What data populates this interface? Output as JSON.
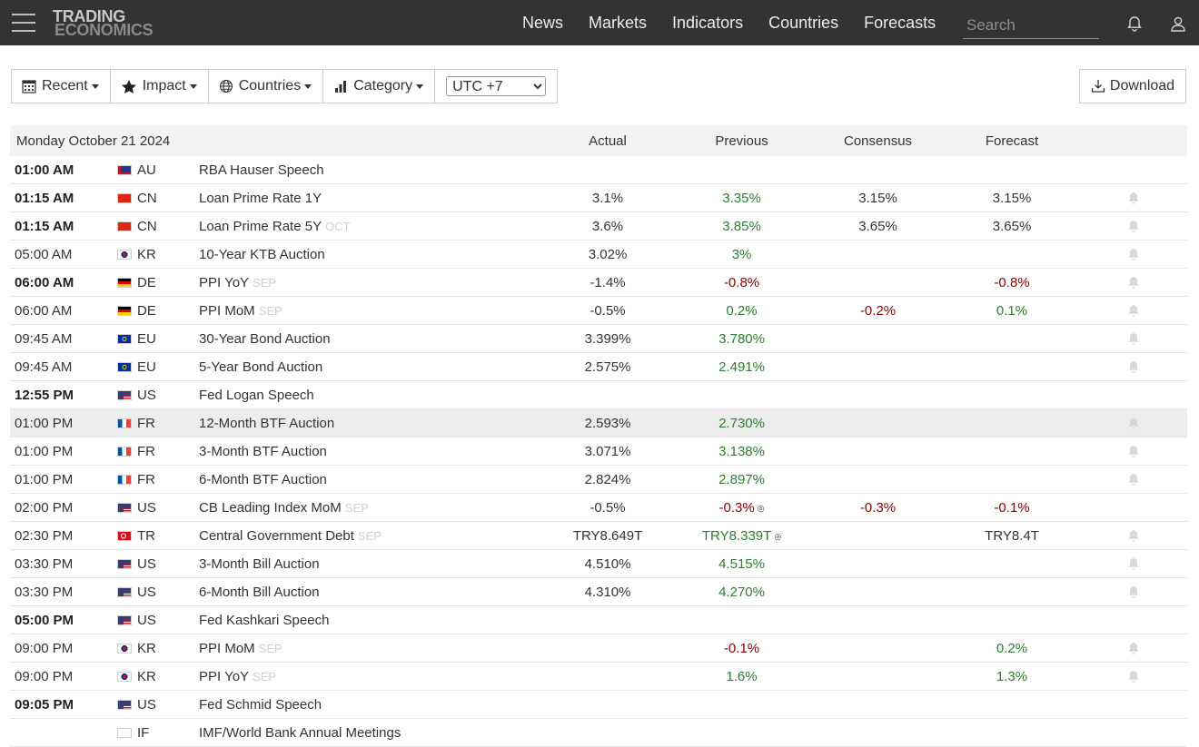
{
  "brand": {
    "line1": "TRADING",
    "line2": "ECONOMICS"
  },
  "nav": {
    "links": [
      "News",
      "Markets",
      "Indicators",
      "Countries",
      "Forecasts"
    ],
    "search_placeholder": "Search"
  },
  "toolbar": {
    "recent": "Recent",
    "impact": "Impact",
    "countries": "Countries",
    "category": "Category",
    "timezone": "UTC +7",
    "download": "Download"
  },
  "table": {
    "date": "Monday October 21 2024",
    "headers": {
      "actual": "Actual",
      "previous": "Previous",
      "consensus": "Consensus",
      "forecast": "Forecast"
    },
    "rows": [
      {
        "time": "01:00 AM",
        "bold": true,
        "country": "AU",
        "event": "RBA Hauser Speech",
        "ref": "",
        "actual": "",
        "previous": "",
        "prev_color": "",
        "prev_revised": false,
        "consensus": "",
        "consensus_color": "",
        "forecast": "",
        "forecast_color": "",
        "bell": false,
        "highlight": false
      },
      {
        "time": "01:15 AM",
        "bold": true,
        "country": "CN",
        "event": "Loan Prime Rate 1Y",
        "ref": "",
        "actual": "3.1%",
        "previous": "3.35%",
        "prev_color": "pos",
        "prev_revised": false,
        "consensus": "3.15%",
        "consensus_color": "dark",
        "forecast": "3.15%",
        "forecast_color": "dark",
        "bell": true,
        "highlight": false
      },
      {
        "time": "01:15 AM",
        "bold": true,
        "country": "CN",
        "event": "Loan Prime Rate 5Y",
        "ref": "OCT",
        "actual": "3.6%",
        "previous": "3.85%",
        "prev_color": "pos",
        "prev_revised": false,
        "consensus": "3.65%",
        "consensus_color": "dark",
        "forecast": "3.65%",
        "forecast_color": "dark",
        "bell": true,
        "highlight": false
      },
      {
        "time": "05:00 AM",
        "bold": false,
        "country": "KR",
        "event": "10-Year KTB Auction",
        "ref": "",
        "actual": "3.02%",
        "previous": "3%",
        "prev_color": "pos",
        "prev_revised": false,
        "consensus": "",
        "consensus_color": "",
        "forecast": "",
        "forecast_color": "",
        "bell": true,
        "highlight": false
      },
      {
        "time": "06:00 AM",
        "bold": true,
        "country": "DE",
        "event": "PPI YoY",
        "ref": "SEP",
        "actual": "-1.4%",
        "previous": "-0.8%",
        "prev_color": "neg",
        "prev_revised": false,
        "consensus": "",
        "consensus_color": "",
        "forecast": "-0.8%",
        "forecast_color": "neg",
        "bell": true,
        "highlight": false
      },
      {
        "time": "06:00 AM",
        "bold": false,
        "country": "DE",
        "event": "PPI MoM",
        "ref": "SEP",
        "actual": "-0.5%",
        "previous": "0.2%",
        "prev_color": "pos",
        "prev_revised": false,
        "consensus": "-0.2%",
        "consensus_color": "neg",
        "forecast": "0.1%",
        "forecast_color": "pos",
        "bell": true,
        "highlight": false
      },
      {
        "time": "09:45 AM",
        "bold": false,
        "country": "EU",
        "event": "30-Year Bond Auction",
        "ref": "",
        "actual": "3.399%",
        "previous": "3.780%",
        "prev_color": "pos",
        "prev_revised": false,
        "consensus": "",
        "consensus_color": "",
        "forecast": "",
        "forecast_color": "",
        "bell": true,
        "highlight": false
      },
      {
        "time": "09:45 AM",
        "bold": false,
        "country": "EU",
        "event": "5-Year Bond Auction",
        "ref": "",
        "actual": "2.575%",
        "previous": "2.491%",
        "prev_color": "pos",
        "prev_revised": false,
        "consensus": "",
        "consensus_color": "",
        "forecast": "",
        "forecast_color": "",
        "bell": true,
        "highlight": false
      },
      {
        "time": "12:55 PM",
        "bold": true,
        "country": "US",
        "event": "Fed Logan Speech",
        "ref": "",
        "actual": "",
        "previous": "",
        "prev_color": "",
        "prev_revised": false,
        "consensus": "",
        "consensus_color": "",
        "forecast": "",
        "forecast_color": "",
        "bell": false,
        "highlight": false
      },
      {
        "time": "01:00 PM",
        "bold": false,
        "country": "FR",
        "event": "12-Month BTF Auction",
        "ref": "",
        "actual": "2.593%",
        "previous": "2.730%",
        "prev_color": "pos",
        "prev_revised": false,
        "consensus": "",
        "consensus_color": "",
        "forecast": "",
        "forecast_color": "",
        "bell": true,
        "highlight": true
      },
      {
        "time": "01:00 PM",
        "bold": false,
        "country": "FR",
        "event": "3-Month BTF Auction",
        "ref": "",
        "actual": "3.071%",
        "previous": "3.138%",
        "prev_color": "pos",
        "prev_revised": false,
        "consensus": "",
        "consensus_color": "",
        "forecast": "",
        "forecast_color": "",
        "bell": true,
        "highlight": false
      },
      {
        "time": "01:00 PM",
        "bold": false,
        "country": "FR",
        "event": "6-Month BTF Auction",
        "ref": "",
        "actual": "2.824%",
        "previous": "2.897%",
        "prev_color": "pos",
        "prev_revised": false,
        "consensus": "",
        "consensus_color": "",
        "forecast": "",
        "forecast_color": "",
        "bell": true,
        "highlight": false
      },
      {
        "time": "02:00 PM",
        "bold": false,
        "country": "US",
        "event": "CB Leading Index MoM",
        "ref": "SEP",
        "actual": "-0.5%",
        "previous": "-0.3%",
        "prev_color": "neg",
        "prev_revised": true,
        "consensus": "-0.3%",
        "consensus_color": "neg",
        "forecast": "-0.1%",
        "forecast_color": "neg",
        "bell": false,
        "highlight": false
      },
      {
        "time": "02:30 PM",
        "bold": false,
        "country": "TR",
        "event": "Central Government Debt",
        "ref": "SEP",
        "actual": "TRY8.649T",
        "previous": "TRY8.339T",
        "prev_color": "pos",
        "prev_revised": true,
        "consensus": "",
        "consensus_color": "",
        "forecast": "TRY8.4T",
        "forecast_color": "dark",
        "bell": true,
        "highlight": false
      },
      {
        "time": "03:30 PM",
        "bold": false,
        "country": "US",
        "event": "3-Month Bill Auction",
        "ref": "",
        "actual": "4.510%",
        "previous": "4.515%",
        "prev_color": "pos",
        "prev_revised": false,
        "consensus": "",
        "consensus_color": "",
        "forecast": "",
        "forecast_color": "",
        "bell": true,
        "highlight": false
      },
      {
        "time": "03:30 PM",
        "bold": false,
        "country": "US",
        "event": "6-Month Bill Auction",
        "ref": "",
        "actual": "4.310%",
        "previous": "4.270%",
        "prev_color": "pos",
        "prev_revised": false,
        "consensus": "",
        "consensus_color": "",
        "forecast": "",
        "forecast_color": "",
        "bell": true,
        "highlight": false
      },
      {
        "time": "05:00 PM",
        "bold": true,
        "country": "US",
        "event": "Fed Kashkari Speech",
        "ref": "",
        "actual": "",
        "previous": "",
        "prev_color": "",
        "prev_revised": false,
        "consensus": "",
        "consensus_color": "",
        "forecast": "",
        "forecast_color": "",
        "bell": false,
        "highlight": false
      },
      {
        "time": "09:00 PM",
        "bold": false,
        "country": "KR",
        "event": "PPI MoM",
        "ref": "SEP",
        "actual": "",
        "previous": "-0.1%",
        "prev_color": "neg",
        "prev_revised": false,
        "consensus": "",
        "consensus_color": "",
        "forecast": "0.2%",
        "forecast_color": "pos",
        "bell": true,
        "highlight": false
      },
      {
        "time": "09:00 PM",
        "bold": false,
        "country": "KR",
        "event": "PPI YoY",
        "ref": "SEP",
        "actual": "",
        "previous": "1.6%",
        "prev_color": "pos",
        "prev_revised": false,
        "consensus": "",
        "consensus_color": "",
        "forecast": "1.3%",
        "forecast_color": "pos",
        "bell": true,
        "highlight": false
      },
      {
        "time": "09:05 PM",
        "bold": true,
        "country": "US",
        "event": "Fed Schmid Speech",
        "ref": "",
        "actual": "",
        "previous": "",
        "prev_color": "",
        "prev_revised": false,
        "consensus": "",
        "consensus_color": "",
        "forecast": "",
        "forecast_color": "",
        "bell": false,
        "highlight": false
      },
      {
        "time": "",
        "bold": false,
        "country": "IF",
        "event": "IMF/World Bank Annual Meetings",
        "ref": "",
        "actual": "",
        "previous": "",
        "prev_color": "",
        "prev_revised": false,
        "consensus": "",
        "consensus_color": "",
        "forecast": "",
        "forecast_color": "",
        "bell": false,
        "highlight": false
      }
    ]
  },
  "colors": {
    "nav_bg": "#333333",
    "positive": "#2e7d32",
    "negative": "#8b0000",
    "header_bg": "#f3f3f3"
  }
}
